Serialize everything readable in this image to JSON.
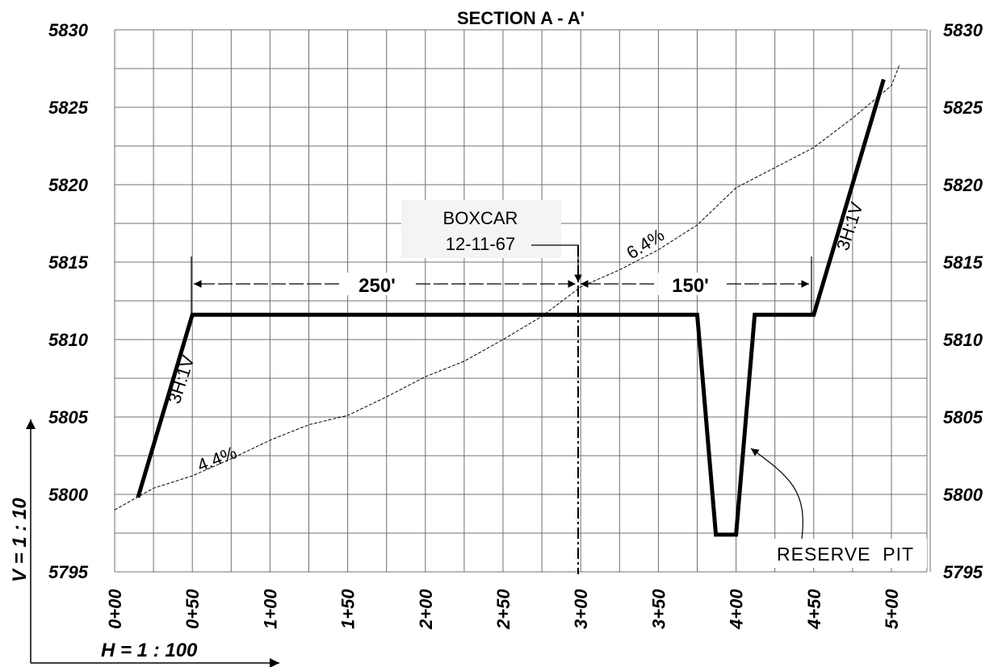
{
  "title": "SECTION A - A'",
  "elevation_labels": [
    "5830",
    "5825",
    "5820",
    "5815",
    "5810",
    "5805",
    "5800",
    "5795"
  ],
  "station_labels": [
    "0+00",
    "0+50",
    "1+00",
    "1+50",
    "2+00",
    "2+50",
    "3+00",
    "3+50",
    "4+00",
    "4+50",
    "5+00"
  ],
  "scales": {
    "vertical": "V = 1 : 10",
    "horizontal": "H = 1 : 100"
  },
  "dimensions": {
    "left": "250'",
    "right": "150'"
  },
  "well_note": {
    "line1": "BOXCAR",
    "line2": "12-11-67"
  },
  "slope_labels": {
    "left_fill": "3H:1V",
    "right_cut": "3H:1V",
    "ground_left": "4.4%",
    "ground_right": "6.4%"
  },
  "reserve_pit_label": "RESERVE  PIT",
  "chart_data": {
    "type": "line",
    "title": "SECTION A - A'",
    "x_units": "station (ft)",
    "y_units": "elevation (ft)",
    "xlim": [
      0,
      525
    ],
    "ylim": [
      5795,
      5830
    ],
    "grid": true,
    "series": [
      {
        "x": [
          15,
          50,
          375,
          387,
          400,
          412,
          450,
          495
        ],
        "y": [
          5799.8,
          5811.6,
          5811.6,
          5797.4,
          5797.4,
          5811.6,
          5811.6,
          5826.8
        ]
      },
      {
        "x": [
          0,
          25,
          50,
          75,
          100,
          125,
          150,
          175,
          200,
          225,
          250,
          275,
          300,
          325,
          350,
          375,
          400,
          425,
          450,
          475,
          500,
          505
        ],
        "y": [
          5799.0,
          5800.4,
          5801.2,
          5802.3,
          5803.5,
          5804.5,
          5805.1,
          5806.3,
          5807.6,
          5808.6,
          5810.0,
          5811.5,
          5813.4,
          5814.5,
          5815.8,
          5817.4,
          5819.8,
          5821.1,
          5822.4,
          5824.3,
          5826.4,
          5827.7
        ]
      }
    ]
  }
}
